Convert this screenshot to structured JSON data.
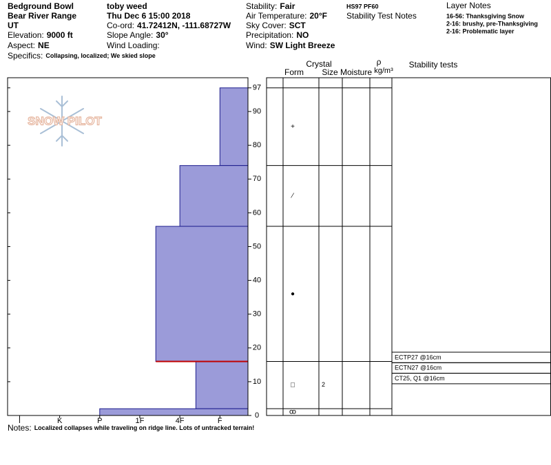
{
  "header": {
    "columns": [
      [
        {
          "value": "Bedground Bowl"
        },
        {
          "value": "Bear River Range"
        },
        {
          "value": "UT"
        },
        {
          "label": "Elevation:",
          "value": "9000 ft"
        },
        {
          "label": "Aspect:",
          "value": "NE"
        }
      ],
      [
        {
          "value": "toby weed"
        },
        {
          "value": "Thu Dec 6 15:00 2018"
        },
        {
          "label": "Co-ord:",
          "value": "41.72412N, -111.68727W"
        },
        {
          "label": "Slope Angle:",
          "value": "30°"
        },
        {
          "label": "Wind Loading:"
        }
      ],
      [
        {
          "label": "Stability:",
          "value": "Fair"
        },
        {
          "label": "Air Temperature:",
          "value": "20°F"
        },
        {
          "label": "Sky Cover:",
          "value": "SCT"
        },
        {
          "label": "Precipitation:",
          "value": "NO"
        },
        {
          "label": "Wind:",
          "value": "SW Light Breeze"
        }
      ]
    ],
    "specifics": {
      "label": "Specifics:",
      "value": "Collapsing, localized; We skied slope"
    },
    "pit_summary": "HS97 PF60",
    "stability_test_notes": "Stability Test Notes",
    "layer_notes": {
      "title": "Layer Notes",
      "items": [
        "16-56: Thanksgiving Snow",
        "2-16: brushy, pre-Thanksgiving",
        "2-16: Problematic layer"
      ]
    }
  },
  "logo": "SNOW PILOT",
  "chart_data": {
    "type": "hardness-profile",
    "ylim": [
      0,
      100
    ],
    "yticks": [
      0,
      10,
      20,
      30,
      40,
      50,
      60,
      70,
      80,
      90,
      97
    ],
    "xlim": [
      0.3,
      6.3
    ],
    "xticks": [
      {
        "value": 6,
        "label": "I"
      },
      {
        "value": 5,
        "label": "K"
      },
      {
        "value": 4,
        "label": "P"
      },
      {
        "value": 3,
        "label": "1F"
      },
      {
        "value": 2,
        "label": "4F"
      },
      {
        "value": 1,
        "label": "F"
      }
    ],
    "color": "#9b9bd9",
    "critical_depth": 16,
    "critical_color": "#c00000",
    "layers": [
      {
        "top": 97,
        "bottom": 74,
        "hardness": 1,
        "form": "+"
      },
      {
        "top": 74,
        "bottom": 56,
        "hardness": 2,
        "form": "⁄"
      },
      {
        "top": 56,
        "bottom": 16,
        "hardness": 2.6,
        "form": "●"
      },
      {
        "top": 16,
        "bottom": 2,
        "hardness": 1.6,
        "form": "□",
        "size": "2"
      },
      {
        "top": 2,
        "bottom": 0,
        "hardness": 4,
        "form": "ꝏ"
      }
    ]
  },
  "table": {
    "headers": {
      "crystal": "Crystal",
      "form": "Form",
      "size": "Size",
      "moisture": "Moisture",
      "rho": "ρ",
      "density_unit": "kg/m³",
      "stability": "Stability tests"
    }
  },
  "stability_tests": [
    "ECTP27 @16cm",
    "ECTN27 @16cm",
    "CT25, Q1 @16cm"
  ],
  "notes": {
    "label": "Notes:",
    "value": "Localized collapses while traveling on ridge line.  Lots of untracked terrain!"
  }
}
